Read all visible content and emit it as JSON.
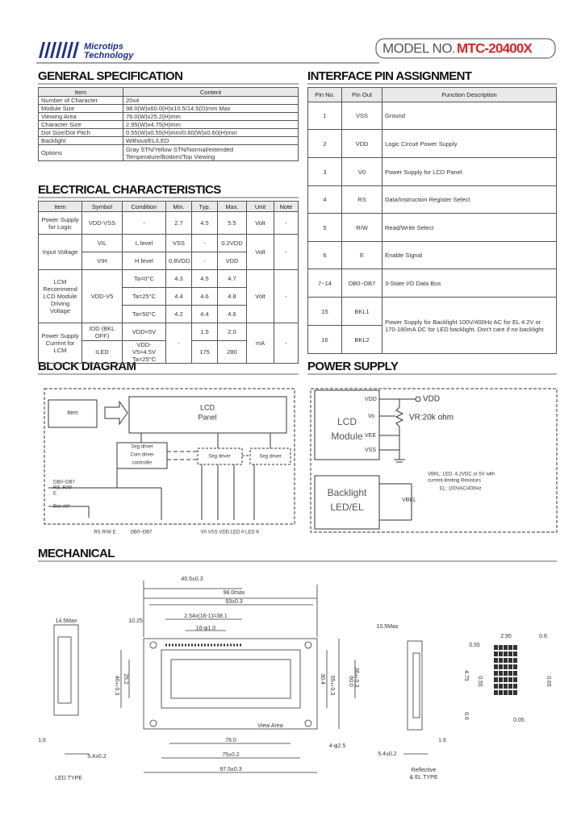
{
  "header": {
    "logo": [
      "Microtips",
      "Technology"
    ],
    "model_label": "MODEL NO.",
    "model": "MTC-20400X"
  },
  "general_spec": {
    "title": "GENERAL SPECIFICATION",
    "headers": [
      "Item",
      "Content"
    ],
    "rows": [
      [
        "Number of Character",
        "20x4"
      ],
      [
        "Module Size",
        "98.0(W)x60.0(H)x10.5/14.5(D)mm Max"
      ],
      [
        "Viewing Area",
        "76.0(W)x25.2(H)mm"
      ],
      [
        "Character Size",
        "2.95(W)x4.75(H)mm"
      ],
      [
        "Dot Size/Dot Pitch",
        "0.55(W)x0.55(H)mm/0.60(W)x0.60(H)mm"
      ],
      [
        "Backlight",
        "Without/EL/LED"
      ],
      [
        "Options",
        "Gray STN/Yellow STN/Normal/extended Temperature/Bottom/Top Viewing"
      ]
    ]
  },
  "electrical": {
    "title": "ELECTRICAL CHARACTERISTICS",
    "headers": [
      "Item",
      "Symbol",
      "Condition",
      "Min.",
      "Typ.",
      "Max.",
      "Unit",
      "Note"
    ],
    "rows": [
      [
        "Power Supply for Logic",
        "VDD-VSS",
        "-",
        "2.7",
        "4.5",
        "5.5",
        "Volt",
        "-"
      ],
      [
        "Input Voltage",
        "VIL",
        "L level",
        "VSS",
        "-",
        "0.2VDD",
        "Volt",
        "-"
      ],
      [
        "VIH",
        "H level",
        "0.8VDD",
        "-",
        "VDD"
      ],
      [
        "LCM Recommend LCD Module Driving Voltage",
        "VDD-V5",
        "Ta=0°C",
        "4.3",
        "4.5",
        "4.7",
        "Volt",
        "-"
      ],
      [
        "Ta=25°C",
        "4.4",
        "4.6",
        "4.8"
      ],
      [
        "Ta=50°C",
        "4.2",
        "4.4",
        "4.6"
      ],
      [
        "Power Supply Current for LCM",
        "IDD (BKL OFF)",
        "VDD=5V",
        "-",
        "1.5",
        "2.0",
        "mA",
        "-"
      ],
      [
        "ILED",
        "VDD-V5=4.5V Ta=25°C",
        "175",
        "280"
      ]
    ]
  },
  "pins": {
    "title": "INTERFACE PIN ASSIGNMENT",
    "headers": [
      "Pin No.",
      "Pin Out",
      "Function Description"
    ],
    "rows": [
      [
        "1",
        "VSS",
        "Ground"
      ],
      [
        "2",
        "VDD",
        "Logic Circuit Power Supply"
      ],
      [
        "3",
        "V0",
        "Power Supply for LCD Panel"
      ],
      [
        "4",
        "RS",
        "Data/Instruction Register Select"
      ],
      [
        "5",
        "R/W",
        "Read/Write Select"
      ],
      [
        "6",
        "E",
        "Enable Signal"
      ],
      [
        "7~14",
        "DB0~DB7",
        "3-State I/O Data Bus"
      ],
      [
        "15",
        "BKL1",
        "Power Supply for Backlight 100V/400Hz AC for EL 4.2V or 170-180mA DC for LED backlight. Don't care if no backlight"
      ],
      [
        "16",
        "BKL2"
      ]
    ]
  },
  "block_diagram": {
    "title": "BLOCK DIAGRAM",
    "labels": [
      "LCD",
      "Panel",
      "Item",
      "Seg driver",
      "Com driver",
      "controller",
      "Seg driver",
      "Seg driver",
      "DB0~DB7",
      "RS, R/W",
      "E",
      "Bus ctrl",
      "RS R/W E",
      "DB0~DB7",
      "V0 VSS VDD LED A LED K"
    ]
  },
  "power_supply": {
    "title": "POWER SUPPLY",
    "labels": [
      "LCD",
      "Module",
      "VDD",
      "VDD",
      "Vo",
      "VR:20k ohm",
      "VEE",
      "VSS",
      "Backlight",
      "LED/EL",
      "VBKL",
      "VBKL: LED, 4.2VDC or 5V with",
      "current-limiting Resistors",
      "EL: 100VAC/400Hz"
    ]
  },
  "mechanical": {
    "title": "MECHANICAL",
    "labels": [
      "40.5±0.3",
      "98.0max",
      "93±0.3",
      "2.54x(16-1)=38.1",
      "16-φ1.0",
      "14.5Max",
      "10.25",
      "10.5Max",
      "60.0",
      "55±0.3",
      "36±0.3",
      "30.4",
      "25.2",
      "40±0.3",
      "View Area",
      "4-φ2.5",
      "76.0",
      "75±0.2",
      "97.5±0.3",
      "5.4±0.2",
      "1.6",
      "5.4±0.2",
      "1.6",
      "LED TYPE",
      "Reflective",
      "& EL TYPE",
      "2.95",
      "0.6",
      "0.55",
      "4.75",
      "0.55",
      "0.65",
      "0.05",
      "0.6"
    ]
  }
}
